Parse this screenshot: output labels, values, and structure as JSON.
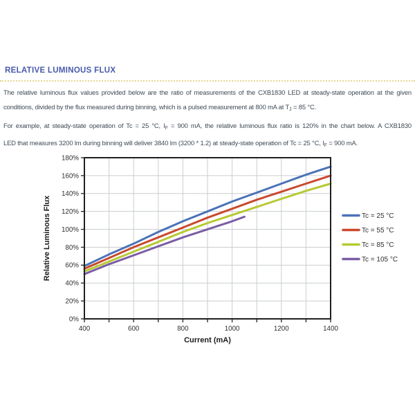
{
  "section": {
    "heading": "RELATIVE LUMINOUS FLUX"
  },
  "intro": {
    "line1": "The relative luminous flux values provided below are the ratio of measurements of the CXB1830 LED at steady-state operation at the given",
    "line2_pre": "conditions, divided by the flux measured during binning, which is a pulsed measurement at 800 mA at T",
    "line2_sub": "J",
    "line2_post": " = 85 °C."
  },
  "example": {
    "line1_pre": "For example, at steady-state operation of Tc = 25 °C, I",
    "line1_sub": "F",
    "line1_post": " = 900 mA, the relative luminous flux ratio is 120% in the chart below. A CXB1830",
    "line2_pre": "LED that measures 3200 lm during binning will deliver 3840 lm (3200 * 1.2) at steady-state operation of Tc = 25 °C, I",
    "line2_sub": "F",
    "line2_post": " = 900 mA."
  },
  "chart_data": {
    "type": "line",
    "title": "",
    "xlabel": "Current (mA)",
    "ylabel": "Relative Luminous Flux",
    "xlim": [
      400,
      1400
    ],
    "ylim": [
      0,
      180
    ],
    "x_major_ticks": [
      400,
      600,
      800,
      1000,
      1200,
      1400
    ],
    "x_grid_step": 100,
    "y_tick_step": 20,
    "y_tick_suffix": "%",
    "grid": true,
    "grid_color": "#c9cdd1",
    "frame_color": "#1f1f1f",
    "legend_position": "right",
    "series": [
      {
        "name": "Tc = 25 °C",
        "color": "#4a72b8",
        "x": [
          400,
          500,
          600,
          700,
          800,
          900,
          1000,
          1100,
          1200,
          1300,
          1400
        ],
        "values": [
          59,
          72,
          84,
          97,
          109,
          120,
          131,
          141,
          151,
          161,
          170
        ]
      },
      {
        "name": "Tc = 55 °C",
        "color": "#c9492f",
        "x": [
          400,
          500,
          600,
          700,
          800,
          900,
          1000,
          1100,
          1200,
          1300,
          1400
        ],
        "values": [
          56,
          68,
          80,
          91,
          102,
          113,
          123,
          133,
          142,
          151,
          160
        ]
      },
      {
        "name": "Tc = 85 °C",
        "color": "#b6c933",
        "x": [
          400,
          500,
          600,
          700,
          800,
          900,
          1000,
          1100,
          1200,
          1300,
          1400
        ],
        "values": [
          53,
          64,
          75,
          86,
          97,
          107,
          116,
          125,
          134,
          143,
          151
        ]
      },
      {
        "name": "Tc = 105 °C",
        "color": "#7a5ca5",
        "x": [
          400,
          500,
          600,
          700,
          800,
          900,
          1000,
          1050
        ],
        "values": [
          50,
          61,
          71,
          81,
          91,
          100,
          109,
          114
        ]
      }
    ]
  }
}
